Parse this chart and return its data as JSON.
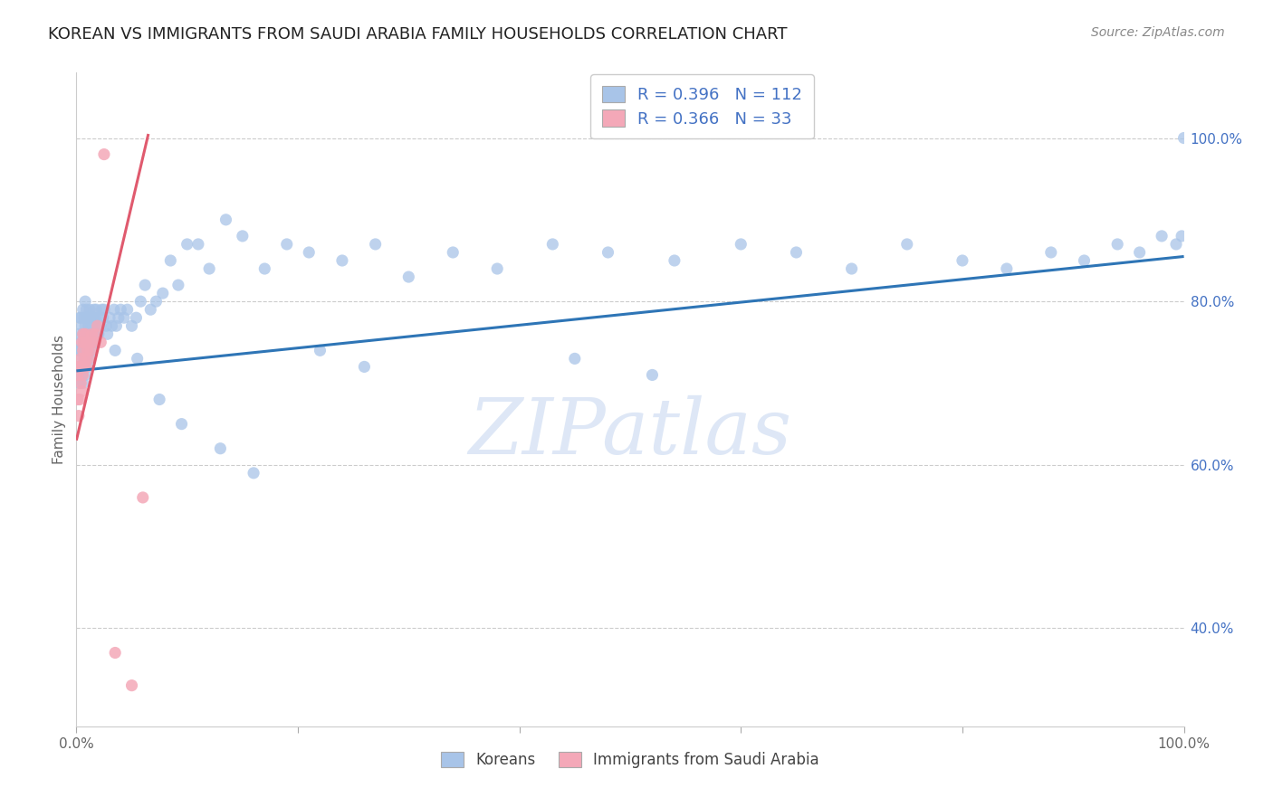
{
  "title": "KOREAN VS IMMIGRANTS FROM SAUDI ARABIA FAMILY HOUSEHOLDS CORRELATION CHART",
  "source": "Source: ZipAtlas.com",
  "ylabel": "Family Households",
  "legend_label1": "Koreans",
  "legend_label2": "Immigrants from Saudi Arabia",
  "R1": "0.396",
  "N1": "112",
  "R2": "0.366",
  "N2": "33",
  "color_blue": "#a8c4e8",
  "color_pink": "#f4a8b8",
  "color_blue_text": "#4472c4",
  "color_trend_blue": "#2e75b6",
  "color_trend_pink": "#e05a6e",
  "watermark": "ZIPatlas",
  "watermark_color": "#c8d8f0",
  "background_color": "#ffffff",
  "xlim": [
    0.0,
    1.0
  ],
  "ylim": [
    0.28,
    1.08
  ],
  "korean_x": [
    0.001,
    0.002,
    0.002,
    0.003,
    0.003,
    0.003,
    0.004,
    0.004,
    0.004,
    0.005,
    0.005,
    0.005,
    0.006,
    0.006,
    0.006,
    0.006,
    0.007,
    0.007,
    0.007,
    0.008,
    0.008,
    0.008,
    0.008,
    0.009,
    0.009,
    0.009,
    0.01,
    0.01,
    0.01,
    0.011,
    0.011,
    0.012,
    0.012,
    0.012,
    0.013,
    0.013,
    0.014,
    0.014,
    0.015,
    0.015,
    0.016,
    0.016,
    0.017,
    0.017,
    0.018,
    0.018,
    0.019,
    0.02,
    0.021,
    0.022,
    0.023,
    0.024,
    0.025,
    0.027,
    0.028,
    0.03,
    0.032,
    0.034,
    0.036,
    0.038,
    0.04,
    0.043,
    0.046,
    0.05,
    0.054,
    0.058,
    0.062,
    0.067,
    0.072,
    0.078,
    0.085,
    0.092,
    0.1,
    0.11,
    0.12,
    0.135,
    0.15,
    0.17,
    0.19,
    0.21,
    0.24,
    0.27,
    0.3,
    0.34,
    0.38,
    0.43,
    0.48,
    0.54,
    0.6,
    0.65,
    0.7,
    0.75,
    0.8,
    0.84,
    0.88,
    0.91,
    0.94,
    0.96,
    0.98,
    0.993,
    0.998,
    1.0,
    0.035,
    0.055,
    0.075,
    0.095,
    0.13,
    0.16,
    0.22,
    0.26,
    0.45,
    0.52
  ],
  "korean_y": [
    0.74,
    0.72,
    0.76,
    0.7,
    0.74,
    0.78,
    0.72,
    0.75,
    0.78,
    0.71,
    0.74,
    0.77,
    0.7,
    0.73,
    0.76,
    0.79,
    0.72,
    0.75,
    0.78,
    0.71,
    0.74,
    0.77,
    0.8,
    0.73,
    0.76,
    0.79,
    0.72,
    0.75,
    0.78,
    0.74,
    0.77,
    0.73,
    0.76,
    0.79,
    0.75,
    0.78,
    0.74,
    0.77,
    0.75,
    0.78,
    0.76,
    0.79,
    0.75,
    0.78,
    0.76,
    0.79,
    0.77,
    0.76,
    0.78,
    0.77,
    0.79,
    0.78,
    0.79,
    0.77,
    0.76,
    0.78,
    0.77,
    0.79,
    0.77,
    0.78,
    0.79,
    0.78,
    0.79,
    0.77,
    0.78,
    0.8,
    0.82,
    0.79,
    0.8,
    0.81,
    0.85,
    0.82,
    0.87,
    0.87,
    0.84,
    0.9,
    0.88,
    0.84,
    0.87,
    0.86,
    0.85,
    0.87,
    0.83,
    0.86,
    0.84,
    0.87,
    0.86,
    0.85,
    0.87,
    0.86,
    0.84,
    0.87,
    0.85,
    0.84,
    0.86,
    0.85,
    0.87,
    0.86,
    0.88,
    0.87,
    0.88,
    1.0,
    0.74,
    0.73,
    0.68,
    0.65,
    0.62,
    0.59,
    0.74,
    0.72,
    0.73,
    0.71
  ],
  "saudi_x": [
    0.001,
    0.001,
    0.002,
    0.002,
    0.003,
    0.003,
    0.004,
    0.004,
    0.005,
    0.005,
    0.005,
    0.006,
    0.006,
    0.006,
    0.007,
    0.007,
    0.008,
    0.008,
    0.009,
    0.009,
    0.01,
    0.011,
    0.012,
    0.013,
    0.014,
    0.015,
    0.017,
    0.019,
    0.022,
    0.025,
    0.035,
    0.05,
    0.06
  ],
  "saudi_y": [
    0.68,
    0.71,
    0.66,
    0.72,
    0.68,
    0.72,
    0.7,
    0.73,
    0.69,
    0.72,
    0.75,
    0.71,
    0.74,
    0.76,
    0.72,
    0.75,
    0.73,
    0.76,
    0.72,
    0.75,
    0.74,
    0.73,
    0.75,
    0.74,
    0.76,
    0.75,
    0.76,
    0.77,
    0.75,
    0.98,
    0.37,
    0.33,
    0.56
  ],
  "trend_blue_x0": 0.0,
  "trend_blue_y0": 0.715,
  "trend_blue_x1": 1.0,
  "trend_blue_y1": 0.855,
  "trend_pink_x0": 0.0,
  "trend_pink_y0": 0.63,
  "trend_pink_x1": 0.065,
  "trend_pink_y1": 1.005
}
